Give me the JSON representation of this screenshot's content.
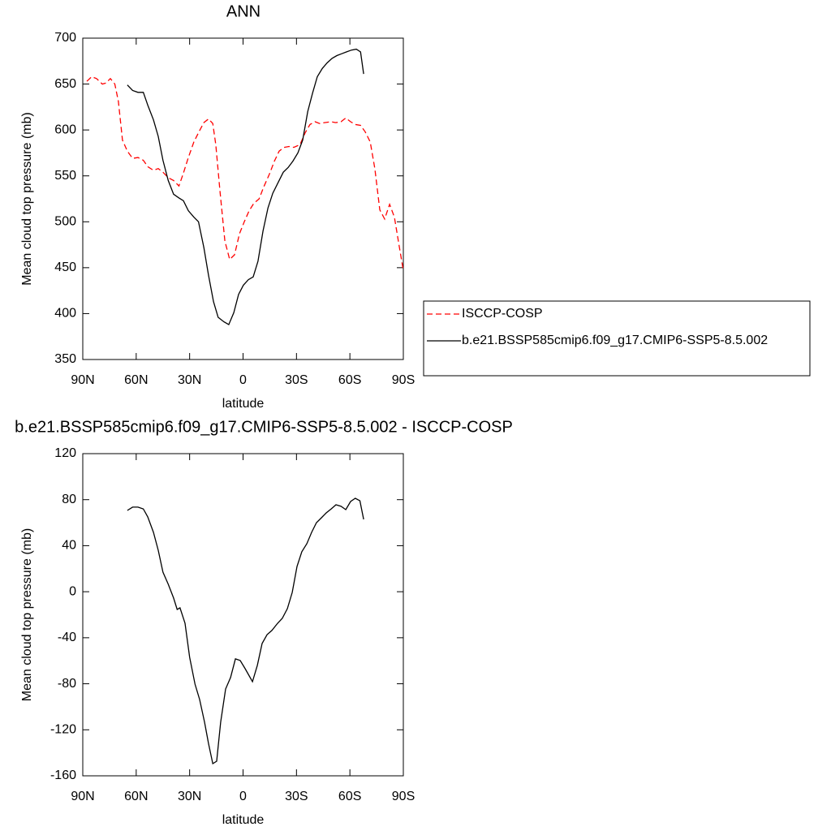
{
  "chart_data": [
    {
      "type": "line",
      "title": "ANN",
      "xlabel": "latitude",
      "ylabel": "Mean cloud top pressure (mb)",
      "xlim": [
        90,
        -90
      ],
      "xticks": [
        {
          "value": 90,
          "label": "90N"
        },
        {
          "value": 60,
          "label": "60N"
        },
        {
          "value": 30,
          "label": "30N"
        },
        {
          "value": 0,
          "label": "0"
        },
        {
          "value": -30,
          "label": "30S"
        },
        {
          "value": -60,
          "label": "60S"
        },
        {
          "value": -90,
          "label": "90S"
        }
      ],
      "ylim": [
        350,
        700
      ],
      "yticks": [
        350,
        400,
        450,
        500,
        550,
        600,
        650,
        700
      ],
      "legend": "right",
      "series": [
        {
          "name": "ISCCP-COSP",
          "color": "#ff0000",
          "linestyle": "dashed",
          "x": [
            87.7,
            85,
            82.3,
            79,
            77,
            74.5,
            72,
            70,
            67.7,
            65,
            62,
            59,
            56,
            53.5,
            50.3,
            47.6,
            45,
            42,
            39,
            36,
            33.5,
            30.7,
            27.6,
            25,
            22,
            19.4,
            17,
            15.3,
            13,
            10.2,
            7.5,
            4.8,
            2,
            -0.7,
            -3.4,
            -6,
            -9,
            -11.6,
            -14.8,
            -17.6,
            -20.3,
            -23,
            -25.8,
            -28.5,
            -32,
            -34.9,
            -37.6,
            -40.4,
            -43,
            -45.8,
            -49.5,
            -52,
            -55,
            -57.7,
            -60.4,
            -63,
            -66,
            -68.6,
            -71.4,
            -74,
            -76.8,
            -79.5,
            -82.3,
            -85,
            -87.7,
            -90
          ],
          "values": [
            653,
            658,
            656,
            650,
            651,
            656,
            650,
            631,
            589,
            577,
            569,
            570,
            567,
            560,
            556,
            558,
            554,
            548,
            545,
            539,
            553,
            570,
            587,
            597,
            608,
            612,
            607,
            584,
            534,
            479,
            459,
            464,
            487,
            500,
            512,
            520,
            525,
            538,
            552,
            566,
            577,
            581,
            582,
            581,
            584,
            597,
            606,
            609,
            607,
            608,
            609,
            608,
            609,
            613,
            609,
            606,
            605,
            598,
            587,
            558,
            513,
            503,
            519,
            505,
            473,
            447
          ]
        },
        {
          "name": "b.e21.BSSP585cmip6.f09_g17.CMIP6-SSP5-8.5.002",
          "color": "#000000",
          "linestyle": "solid",
          "x": [
            65,
            62,
            59,
            56,
            53.5,
            50.3,
            47.6,
            45,
            42,
            39,
            36,
            33.5,
            30.7,
            27.6,
            25,
            22,
            19.4,
            16.6,
            14,
            10.7,
            8,
            5.2,
            2.5,
            -0.2,
            -3,
            -5.7,
            -8.4,
            -11.2,
            -14,
            -16.7,
            -19.8,
            -22.6,
            -25.3,
            -28,
            -30.8,
            -33.5,
            -36.3,
            -39,
            -41.7,
            -44.5,
            -47.2,
            -50,
            -52.7,
            -55.4,
            -58,
            -60.9,
            -63.6,
            -66,
            -67.7
          ],
          "values": [
            649,
            643,
            641,
            641,
            627,
            611,
            593,
            567,
            545,
            530,
            526,
            523,
            512,
            505,
            500,
            472,
            442,
            413,
            396,
            391,
            388,
            401,
            421,
            431,
            437,
            440,
            457,
            490,
            515,
            531,
            543,
            554,
            559,
            566,
            575,
            589,
            620,
            640,
            658,
            667,
            673,
            678,
            681,
            683,
            685,
            687,
            688,
            685,
            661
          ]
        }
      ]
    },
    {
      "type": "line",
      "title": "b.e21.BSSP585cmip6.f09_g17.CMIP6-SSP5-8.5.002 - ISCCP-COSP",
      "xlabel": "latitude",
      "ylabel": "Mean cloud top pressure (mb)",
      "xlim": [
        90,
        -90
      ],
      "xticks": [
        {
          "value": 90,
          "label": "90N"
        },
        {
          "value": 60,
          "label": "60N"
        },
        {
          "value": 30,
          "label": "30N"
        },
        {
          "value": 0,
          "label": "0"
        },
        {
          "value": -30,
          "label": "30S"
        },
        {
          "value": -60,
          "label": "60S"
        },
        {
          "value": -90,
          "label": "90S"
        }
      ],
      "ylim": [
        -160,
        120
      ],
      "yticks": [
        -160,
        -120,
        -80,
        -40,
        0,
        40,
        80,
        120
      ],
      "color": "#000000",
      "x": [
        65,
        62,
        59,
        56,
        53.5,
        50.3,
        47.6,
        45,
        42,
        39,
        37,
        35.4,
        32.6,
        30,
        27,
        24.4,
        21.6,
        19.4,
        17,
        14.8,
        12.6,
        9.8,
        7,
        4.3,
        1.6,
        -1.2,
        -5.3,
        -8,
        -10.7,
        -13.5,
        -16.2,
        -19.4,
        -22,
        -24.9,
        -27.6,
        -30.3,
        -33,
        -35.8,
        -38.5,
        -41.2,
        -44,
        -46.7,
        -49.5,
        -52.2,
        -55,
        -57.7,
        -60.4,
        -63,
        -65.6,
        -67.7
      ],
      "values": [
        70.6,
        73.5,
        73.5,
        72,
        65,
        51.6,
        36,
        17,
        6.5,
        -5.5,
        -15.4,
        -14,
        -27.4,
        -57,
        -80.3,
        -93.7,
        -113.5,
        -131.8,
        -149.4,
        -147.3,
        -113.4,
        -84.5,
        -74.6,
        -58.4,
        -59.8,
        -66.9,
        -78.2,
        -64,
        -45,
        -37.3,
        -33.7,
        -27.4,
        -23.2,
        -14.7,
        -0.6,
        22,
        34.7,
        41.7,
        51.6,
        60,
        64.3,
        68.5,
        72,
        75.6,
        74.2,
        71.3,
        78.4,
        81.2,
        79,
        62.9
      ]
    }
  ]
}
